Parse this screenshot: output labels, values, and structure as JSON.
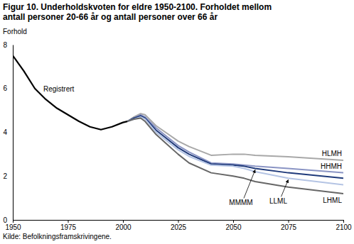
{
  "chart_data": {
    "type": "line",
    "title": "Figur 10. Underholdskvoten for eldre 1950-2100. Forholdet mellom antall personer 20-66 år og antall personer over 66 år",
    "ylabel": "Forhold",
    "source": "Kilde: Befolkningsframskrivingene.",
    "x": [
      1950,
      1955,
      1960,
      1965,
      1970,
      1975,
      1980,
      1985,
      1990,
      1995,
      2000,
      2002,
      2005,
      2008,
      2010,
      2015,
      2020,
      2025,
      2030,
      2040,
      2050,
      2055,
      2060,
      2075,
      2100
    ],
    "series": [
      {
        "name": "Registrert",
        "color": "#000000",
        "values": [
          7.5,
          6.8,
          6.0,
          5.5,
          5.1,
          4.8,
          4.5,
          4.25,
          4.12,
          4.25,
          4.45,
          4.5,
          null,
          null,
          null,
          null,
          null,
          null,
          null,
          null,
          null,
          null,
          null,
          null,
          null
        ]
      },
      {
        "name": "HLMH",
        "color": "#a8a8a8",
        "values": [
          null,
          null,
          null,
          null,
          null,
          null,
          null,
          null,
          null,
          null,
          null,
          4.5,
          4.7,
          4.85,
          4.8,
          4.3,
          3.95,
          3.6,
          3.35,
          2.95,
          3.0,
          3.0,
          2.95,
          2.88,
          2.72
        ]
      },
      {
        "name": "HHMH",
        "color": "#8a94c4",
        "values": [
          null,
          null,
          null,
          null,
          null,
          null,
          null,
          null,
          null,
          null,
          null,
          4.5,
          4.65,
          4.8,
          4.7,
          4.2,
          3.8,
          3.4,
          3.1,
          2.6,
          2.55,
          2.5,
          2.45,
          2.35,
          2.15
        ]
      },
      {
        "name": "MMMM",
        "color": "#1f3a7a",
        "values": [
          null,
          null,
          null,
          null,
          null,
          null,
          null,
          null,
          null,
          null,
          null,
          4.5,
          4.65,
          4.75,
          4.65,
          4.1,
          3.7,
          3.3,
          3.0,
          2.55,
          2.5,
          2.45,
          2.35,
          2.15,
          1.9
        ]
      },
      {
        "name": "LLML",
        "color": "#b4c4e4",
        "values": [
          null,
          null,
          null,
          null,
          null,
          null,
          null,
          null,
          null,
          null,
          null,
          4.5,
          4.6,
          4.7,
          4.6,
          4.0,
          3.6,
          3.2,
          2.9,
          2.5,
          2.45,
          2.35,
          2.2,
          1.9,
          1.6
        ]
      },
      {
        "name": "LHML",
        "color": "#666666",
        "values": [
          null,
          null,
          null,
          null,
          null,
          null,
          null,
          null,
          null,
          null,
          null,
          4.5,
          4.6,
          4.65,
          4.5,
          3.9,
          3.45,
          3.0,
          2.6,
          2.15,
          2.0,
          1.9,
          1.75,
          1.5,
          1.2
        ]
      }
    ],
    "xlim": [
      1950,
      2100
    ],
    "xticks": [
      1950,
      1975,
      2000,
      2025,
      2050,
      2075,
      2100
    ],
    "ylim": [
      0,
      8
    ],
    "yticks": [
      0,
      2,
      4,
      6,
      8
    ],
    "grid": false
  }
}
